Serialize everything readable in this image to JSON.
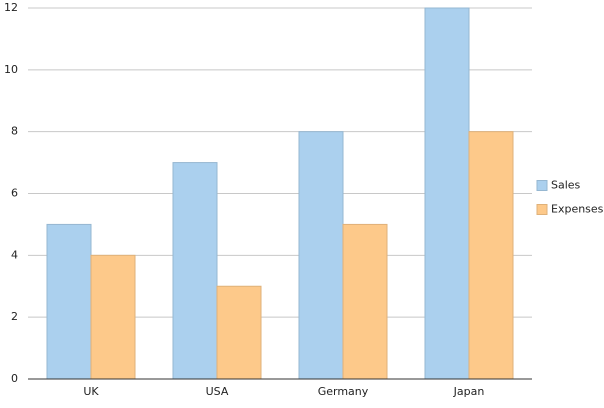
{
  "chart_data": {
    "type": "bar",
    "categories": [
      "UK",
      "USA",
      "Germany",
      "Japan"
    ],
    "series": [
      {
        "name": "Sales",
        "color": "#abd0ee",
        "values": [
          5,
          7,
          8,
          12
        ]
      },
      {
        "name": "Expenses",
        "color": "#fdc98a",
        "values": [
          4,
          3,
          5,
          8
        ]
      }
    ],
    "ylim": [
      0,
      12
    ],
    "yticks": [
      0,
      2,
      4,
      6,
      8,
      10,
      12
    ],
    "grid": true,
    "legend": "right"
  }
}
